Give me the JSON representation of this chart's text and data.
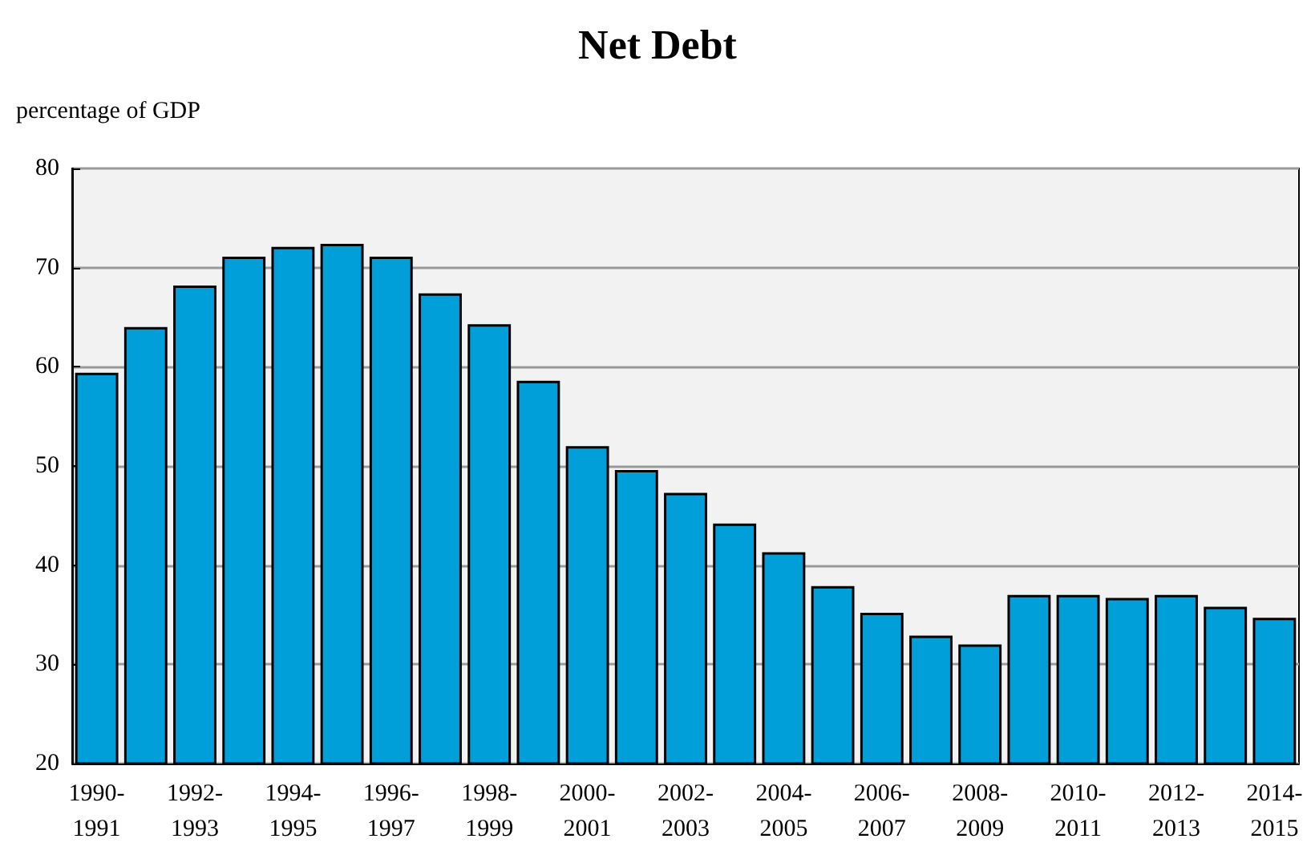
{
  "chart_data": {
    "type": "bar",
    "title": "Net Debt",
    "ylabel": "percentage of GDP",
    "categories": [
      "1990-\n1991",
      null,
      "1992-\n1993",
      null,
      "1994-\n1995",
      null,
      "1996-\n1997",
      null,
      "1998-\n1999",
      null,
      "2000-\n2001",
      null,
      "2002-\n2003",
      null,
      "2004-\n2005",
      null,
      "2006-\n2007",
      null,
      "2008-\n2009",
      null,
      "2010-\n2011",
      null,
      "2012-\n2013",
      null,
      "2014-\n2015"
    ],
    "values": [
      59.4,
      64.0,
      68.2,
      71.1,
      72.1,
      72.4,
      71.1,
      67.4,
      64.3,
      58.6,
      52.0,
      49.6,
      47.3,
      44.2,
      41.3,
      37.9,
      35.2,
      32.9,
      32.0,
      37.0,
      37.0,
      36.7,
      37.0,
      35.8,
      34.7
    ],
    "color": "#009fd9",
    "ylim": [
      20,
      80
    ],
    "yticks": [
      20,
      30,
      40,
      50,
      60,
      70,
      80
    ],
    "grid": "y"
  }
}
